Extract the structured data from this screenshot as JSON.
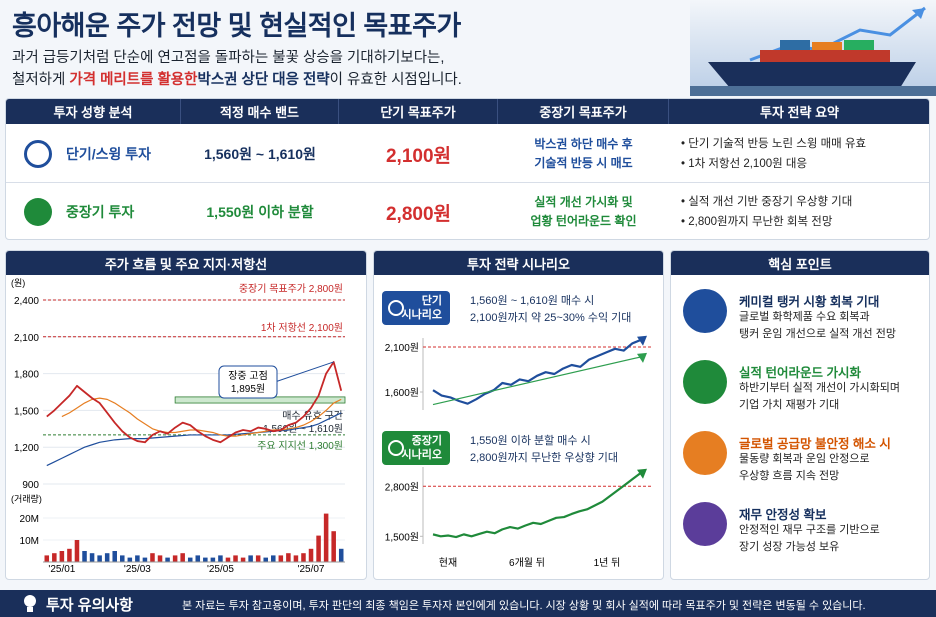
{
  "header": {
    "title": "흥아해운 주가 전망 및 현실적인 목표주가",
    "line1": "과거 급등기처럼 단순에 연고점을 돌파하는 불꽃 상승을 기대하기보다는,",
    "line2": [
      "철저하게",
      "가격 메리트를 활용한",
      "박스권 상단 대응 전략",
      "이 유효한 시점입니다."
    ]
  },
  "table": {
    "headers": [
      "투자 성향 분석",
      "적정 매수 밴드",
      "단기 목표주가",
      "중장기 목표주가",
      "투자 전략 요약"
    ],
    "rows": [
      {
        "type": "단기/스윙 투자",
        "band": "1,560원 ~ 1,610원",
        "short_target": "2,100원",
        "mid_target": [
          "박스권 하단 매수 후",
          "기술적 반등 시 매도"
        ],
        "strategy": [
          "단기 기술적 반등 노린 스윙 매매 유효",
          "1차 저항선 2,100원 대응"
        ]
      },
      {
        "type": "중장기 투자",
        "band": "1,550원 이하 분할",
        "short_target": "2,800원",
        "mid_target": [
          "실적 개선 가시화 및",
          "업황 턴어라운드 확인"
        ],
        "strategy": [
          "실적 개선 기반 중장기 우상향 기대",
          "2,800원까지 무난한 회복 전망"
        ]
      }
    ]
  },
  "chart_data": [
    {
      "type": "line",
      "title": "주가 흐름 및 주요 지지·저항선",
      "y_unit": "(원)",
      "categories": [
        null,
        null,
        "'25/01",
        null,
        null,
        null,
        null,
        null,
        null,
        null,
        null,
        null,
        "'25/03",
        null,
        null,
        null,
        null,
        null,
        null,
        null,
        null,
        null,
        null,
        "'25/05",
        null,
        null,
        null,
        null,
        null,
        null,
        null,
        null,
        null,
        null,
        null,
        "'25/07",
        null,
        null,
        null,
        null
      ],
      "series": [
        {
          "color": "#c62828",
          "values": [
            1450,
            1500,
            1560,
            1620,
            1700,
            1650,
            1600,
            1560,
            1480,
            1400,
            1330,
            1280,
            1250,
            1240,
            1300,
            1330,
            1310,
            1360,
            1400,
            1380,
            1330,
            1290,
            1260,
            1240,
            1280,
            1320,
            1340,
            1330,
            1360,
            1350,
            1330,
            1340,
            1380,
            1400,
            1450,
            1520,
            1620,
            1800,
            1895,
            1660
          ]
        },
        {
          "color": "#e67e22",
          "values": [
            null,
            null,
            1450,
            1480,
            1520,
            1560,
            1590,
            1600,
            1590,
            1560,
            1520,
            1480,
            1430,
            1390,
            1350,
            1330,
            1320,
            1320,
            1330,
            1340,
            1340,
            1330,
            1320,
            1300,
            1290,
            1290,
            1300,
            1310,
            1320,
            1330,
            1340,
            1340,
            1350,
            1360,
            1380,
            1410,
            1450,
            1500,
            1560,
            1590
          ]
        },
        {
          "color": "#1f4e9c",
          "values": [
            1050,
            1080,
            1110,
            1140,
            1170,
            1200,
            1220,
            1240,
            1250,
            1260,
            1265,
            1270,
            1270,
            1270,
            1275,
            1280,
            1285,
            1290,
            1295,
            1300,
            1300,
            1300,
            1300,
            1300,
            1300,
            1305,
            1310,
            1315,
            1320,
            1325,
            1330,
            1335,
            1340,
            1350,
            1360,
            1370,
            1390,
            1420,
            1450,
            1480
          ]
        }
      ],
      "ylim": [
        900,
        2400
      ],
      "yticks": [
        900,
        {
          "value": 1200,
          "label": "1,200"
        },
        {
          "value": 1500,
          "label": "1,500"
        },
        {
          "value": 1800,
          "label": "1,800"
        },
        {
          "value": 2100,
          "label": "2,100"
        },
        {
          "value": 2400,
          "label": "2,400"
        }
      ],
      "top_line": {
        "label": "중장기 목표주가 2,800원",
        "color": "#c62828"
      },
      "reference_lines": [
        {
          "value": 2100,
          "label": "1차 저항선 2,100원",
          "color": "#c62828"
        },
        {
          "value": 1300,
          "label": "주요 지지선 1,300원",
          "color": "#2e7d32"
        }
      ],
      "zone": {
        "range": [
          1560,
          1610
        ],
        "label": [
          "매수 유효 구간",
          "1,560원 ~ 1,610원"
        ],
        "color": "#2e7d32"
      },
      "callout": {
        "label": [
          "장중 고점",
          "1,895원"
        ],
        "value": 1895
      },
      "volume": {
        "unit": "(거래량)",
        "values": [
          3,
          4,
          5,
          6,
          10,
          5,
          4,
          3,
          4,
          5,
          3,
          2,
          3,
          2,
          4,
          3,
          2,
          3,
          4,
          2,
          3,
          2,
          2,
          3,
          2,
          3,
          2,
          3,
          3,
          2,
          3,
          3,
          4,
          3,
          4,
          6,
          12,
          22,
          14,
          6
        ],
        "ylim": [
          0,
          25
        ],
        "yticks": [
          {
            "value": 10,
            "label": "10M"
          },
          {
            "value": 20,
            "label": "20M"
          }
        ]
      }
    },
    {
      "type": "line",
      "series": [
        {
          "color": "#1f4e9c",
          "values": [
            1620,
            1560,
            1540,
            1500,
            1470,
            1520,
            1580,
            1620,
            1700,
            1680,
            1740,
            1720,
            1780,
            1820,
            1800,
            1860,
            1900,
            1880,
            1960,
            2000,
            2040,
            2080,
            2060,
            2140,
            2180
          ]
        },
        {
          "color": "#2e9e4f",
          "values": [
            1460,
            1990
          ]
        }
      ],
      "ylim": [
        1400,
        2200
      ],
      "yticks": [
        {
          "value": 2100,
          "label": "2,100원"
        },
        {
          "value": 1600,
          "label": "1,600원"
        }
      ]
    },
    {
      "type": "line",
      "series": [
        {
          "color": "#1f8a3a",
          "values": [
            1550,
            1500,
            1520,
            1480,
            1550,
            1500,
            1560,
            1620,
            1580,
            1680,
            1740,
            1700,
            1780,
            1850,
            1820,
            1900,
            1980,
            2000,
            2080,
            2150,
            2200,
            2300,
            2400,
            2550,
            2700,
            2850,
            3000,
            3150
          ]
        }
      ],
      "ylim": [
        1300,
        3300
      ],
      "yticks": [
        {
          "value": 2800,
          "label": "2,800원"
        },
        {
          "value": 1500,
          "label": "1,500원"
        }
      ]
    }
  ],
  "scenario_panel": {
    "title": "투자 전략 시나리오",
    "scenarios": [
      {
        "badge": [
          "단기",
          "시나리오"
        ],
        "text": [
          "1,560원 ~ 1,610원 매수 시",
          "2,100원까지 약 25~30% 수익 기대"
        ]
      },
      {
        "badge": [
          "중장기",
          "시나리오"
        ],
        "text": [
          "1,550원 이하 분할 매수 시",
          "2,800원까지 무난한 우상향 기대"
        ]
      }
    ],
    "x_labels": [
      "현재",
      "6개월 뒤",
      "1년 뒤"
    ]
  },
  "points_panel": {
    "title": "핵심 포인트",
    "items": [
      {
        "title": "케미컬 탱커 시황 회복 기대",
        "text": [
          "글로벌 화학제품 수요 회복과",
          "탱커 운임 개선으로 실적 개선 전망"
        ]
      },
      {
        "title": "실적 턴어라운드 가시화",
        "text": [
          "하반기부터 실적 개선이 가시화되며",
          "기업 가치 재평가 기대"
        ]
      },
      {
        "title": "글로벌 공급망 불안정 해소 시",
        "text": [
          "물동량 회복과 운임 안정으로",
          "우상향 흐름 지속 전망"
        ]
      },
      {
        "title": "재무 안정성 확보",
        "text": [
          "안정적인 재무 구조를 기반으로",
          "장기 성장 가능성 보유"
        ]
      }
    ]
  },
  "footer": {
    "title": "투자 유의사항",
    "text": "본 자료는 투자 참고용이며, 투자 판단의 최종 책임은 투자자 본인에게 있습니다. 시장 상황 및 회사 실적에 따라 목표주가 및 전략은 변동될 수 있습니다."
  }
}
